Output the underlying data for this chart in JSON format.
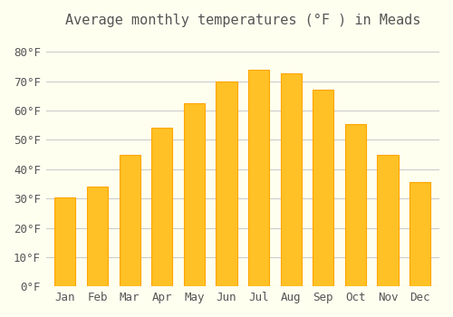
{
  "title": "Average monthly temperatures (°F ) in Meads",
  "months": [
    "Jan",
    "Feb",
    "Mar",
    "Apr",
    "May",
    "Jun",
    "Jul",
    "Aug",
    "Sep",
    "Oct",
    "Nov",
    "Dec"
  ],
  "values": [
    30.5,
    34.0,
    45.0,
    54.0,
    62.5,
    70.0,
    74.0,
    72.5,
    67.0,
    55.5,
    45.0,
    35.5
  ],
  "bar_color": "#FFC125",
  "bar_edge_color": "#FFA500",
  "background_color": "#FFFFF0",
  "grid_color": "#CCCCCC",
  "text_color": "#555555",
  "ylim": [
    0,
    85
  ],
  "yticks": [
    0,
    10,
    20,
    30,
    40,
    50,
    60,
    70,
    80
  ],
  "title_fontsize": 11,
  "tick_fontsize": 9
}
